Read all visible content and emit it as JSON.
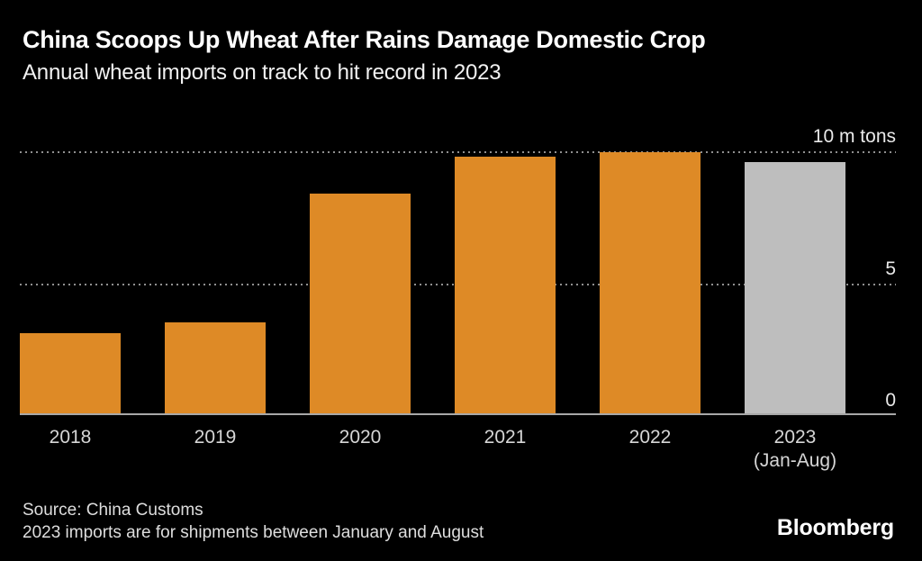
{
  "header": {
    "title": "China Scoops Up Wheat After Rains Damage Domestic Crop",
    "subtitle": "Annual wheat imports on track to hit record in 2023"
  },
  "chart_data": {
    "type": "bar",
    "categories": [
      "2018",
      "2019",
      "2020",
      "2021",
      "2022",
      "2023"
    ],
    "category_sublabels": [
      "",
      "",
      "",
      "",
      "",
      "(Jan-Aug)"
    ],
    "values": [
      3.1,
      3.5,
      8.4,
      9.8,
      9.96,
      9.6
    ],
    "bar_colors": [
      "#DE8A26",
      "#DE8A26",
      "#DE8A26",
      "#DE8A26",
      "#DE8A26",
      "#BEBEBE"
    ],
    "title": "China Scoops Up Wheat After Rains Damage Domestic Crop",
    "subtitle": "Annual wheat imports on track to hit record in 2023",
    "ylabel": "",
    "xlabel": "",
    "ylim": [
      0,
      10
    ],
    "yticks": [
      {
        "value": 10,
        "label": "10 m tons",
        "line": "dotted"
      },
      {
        "value": 5,
        "label": "5",
        "line": "dotted"
      },
      {
        "value": 0,
        "label": "0",
        "line": "solid"
      }
    ],
    "grid": "horizontal-dotted",
    "legend": "none",
    "axis_side": "right"
  },
  "footer": {
    "source": "Source: China Customs",
    "note": "2023 imports are for shipments between January and August",
    "brand": "Bloomberg"
  },
  "colors": {
    "background": "#000000",
    "bar_orange": "#DE8A26",
    "bar_gray": "#BEBEBE",
    "title_text": "#FFFFFF",
    "axis_text": "#E9E9E9",
    "grid_line": "#8F8F8F",
    "base_line": "#A8A8A8"
  }
}
